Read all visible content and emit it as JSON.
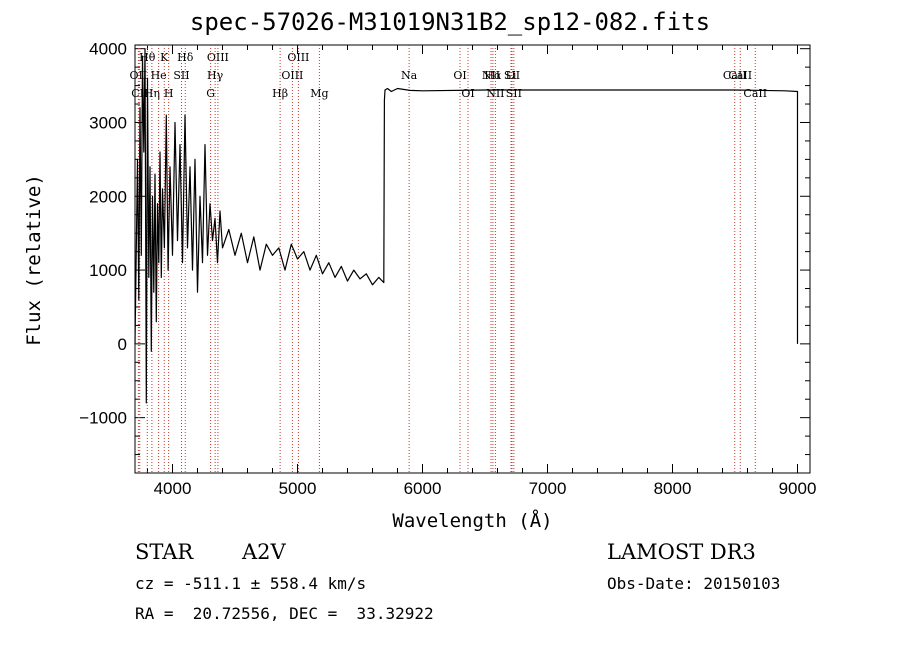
{
  "chart_data": {
    "type": "line",
    "title": "spec-57026-M31019N31B2_sp12-082.fits",
    "xlabel": "Wavelength (Å)",
    "ylabel": "Flux (relative)",
    "xlim": [
      3700,
      9100
    ],
    "ylim": [
      -1750,
      4050
    ],
    "xticks": [
      4000,
      5000,
      6000,
      7000,
      8000,
      9000
    ],
    "yticks": [
      -1000,
      0,
      1000,
      2000,
      3000,
      4000
    ],
    "series": [
      {
        "name": "flux",
        "x": [
          3700,
          3720,
          3730,
          3740,
          3750,
          3760,
          3770,
          3780,
          3790,
          3800,
          3810,
          3820,
          3830,
          3840,
          3850,
          3860,
          3870,
          3880,
          3890,
          3900,
          3910,
          3920,
          3935,
          3950,
          3965,
          3980,
          4000,
          4020,
          4040,
          4060,
          4080,
          4100,
          4120,
          4140,
          4160,
          4180,
          4200,
          4220,
          4240,
          4260,
          4280,
          4300,
          4320,
          4340,
          4360,
          4380,
          4400,
          4450,
          4500,
          4550,
          4600,
          4650,
          4700,
          4750,
          4800,
          4850,
          4900,
          4950,
          5000,
          5050,
          5100,
          5150,
          5200,
          5250,
          5300,
          5350,
          5400,
          5450,
          5500,
          5550,
          5600,
          5650,
          5690,
          5695,
          5700,
          5720,
          5750,
          5800,
          5900,
          6000,
          6500,
          7000,
          8000,
          8500,
          8900,
          9000,
          9000
        ],
        "y": [
          0,
          2500,
          600,
          3200,
          1200,
          3900,
          2600,
          4000,
          -800,
          3600,
          900,
          2400,
          -100,
          2000,
          700,
          2300,
          300,
          1900,
          1100,
          2600,
          900,
          2100,
          1300,
          3100,
          1000,
          2400,
          1200,
          3000,
          1400,
          2700,
          1100,
          3100,
          1300,
          2400,
          1000,
          2500,
          700,
          2000,
          1100,
          2700,
          1200,
          1900,
          1400,
          1700,
          1100,
          1800,
          1300,
          1550,
          1200,
          1500,
          1100,
          1450,
          1000,
          1350,
          1200,
          1300,
          1000,
          1350,
          1150,
          1250,
          1000,
          1200,
          950,
          1100,
          900,
          1050,
          850,
          1000,
          880,
          950,
          800,
          900,
          830,
          3300,
          3440,
          3460,
          3420,
          3460,
          3435,
          3430,
          3440,
          3440,
          3440,
          3440,
          3430,
          3420,
          0
        ]
      }
    ],
    "lines": [
      {
        "label": "Hθ",
        "x": 3798
      },
      {
        "label": "K",
        "x": 3934
      },
      {
        "label": "Hδ",
        "x": 4102
      },
      {
        "label": "OIII",
        "x": 4363
      },
      {
        "label": "OIII",
        "x": 5007
      },
      {
        "label": "OII",
        "x": 3727
      },
      {
        "label": "He",
        "x": 3889
      },
      {
        "label": "SII",
        "x": 4072
      },
      {
        "label": "Hγ",
        "x": 4341
      },
      {
        "label": "OIII",
        "x": 4959
      },
      {
        "label": "Na",
        "x": 5893
      },
      {
        "label": "OI",
        "x": 6300
      },
      {
        "label": "Hα",
        "x": 6563
      },
      {
        "label": "SII",
        "x": 6716
      },
      {
        "label": "NII",
        "x": 6548
      },
      {
        "label": "Li",
        "x": 6708
      },
      {
        "label": "CaII",
        "x": 8542
      },
      {
        "label": "CaII",
        "x": 8498
      },
      {
        "label": "CII",
        "x": 3738
      },
      {
        "label": "Hη",
        "x": 3835
      },
      {
        "label": "H",
        "x": 3969
      },
      {
        "label": "G",
        "x": 4305
      },
      {
        "label": "Hβ",
        "x": 4861
      },
      {
        "label": "Mg",
        "x": 5175
      },
      {
        "label": "OI",
        "x": 6364
      },
      {
        "label": "NII",
        "x": 6583
      },
      {
        "label": "SII",
        "x": 6731
      },
      {
        "label": "CaII",
        "x": 8662
      }
    ]
  },
  "info": {
    "class": "STAR",
    "subclass": "A2V",
    "survey": "LAMOST DR3",
    "cz": "cz = -511.1 ± 558.4 km/s",
    "obs_date": "Obs-Date: 20150103",
    "radec": "RA =  20.72556, DEC =  33.32922"
  },
  "colors": {
    "line": "#000000",
    "marker": "#c0392b"
  }
}
